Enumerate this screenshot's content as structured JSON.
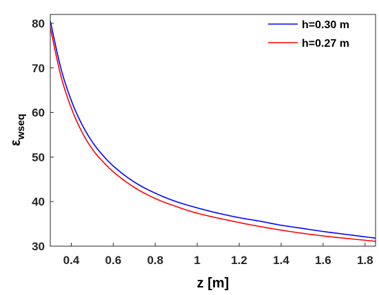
{
  "chart_data": {
    "type": "line",
    "xlabel": "z [m]",
    "ylabel_main": "ε",
    "ylabel_sub": "wseq",
    "xlim": [
      0.3,
      1.85
    ],
    "ylim": [
      30,
      82
    ],
    "xticks": [
      0.4,
      0.6,
      0.8,
      1.0,
      1.2,
      1.4,
      1.6,
      1.8
    ],
    "xtick_labels": [
      "0.4",
      "0.6",
      "0.8",
      "1",
      "1.2",
      "1.4",
      "1.6",
      "1.8"
    ],
    "yticks": [
      30,
      40,
      50,
      60,
      70,
      80
    ],
    "ytick_labels": [
      "30",
      "40",
      "50",
      "60",
      "70",
      "80"
    ],
    "grid": false,
    "legend_position": "top-right",
    "series": [
      {
        "name": "h=0.30 m",
        "color": "#0000ff",
        "x": [
          0.3,
          0.35,
          0.4,
          0.45,
          0.5,
          0.55,
          0.6,
          0.7,
          0.8,
          0.9,
          1.0,
          1.1,
          1.2,
          1.3,
          1.4,
          1.5,
          1.6,
          1.7,
          1.85
        ],
        "y": [
          80.5,
          70.0,
          62.7,
          57.4,
          53.4,
          50.4,
          48.0,
          44.4,
          41.9,
          40.0,
          38.6,
          37.4,
          36.4,
          35.6,
          34.7,
          34.0,
          33.3,
          32.7,
          31.8
        ]
      },
      {
        "name": "h=0.27 m",
        "color": "#ff0000",
        "x": [
          0.3,
          0.35,
          0.4,
          0.45,
          0.5,
          0.55,
          0.6,
          0.7,
          0.8,
          0.9,
          1.0,
          1.1,
          1.2,
          1.3,
          1.4,
          1.5,
          1.6,
          1.7,
          1.85
        ],
        "y": [
          79.0,
          68.3,
          61.0,
          55.7,
          51.8,
          49.0,
          46.7,
          43.2,
          40.7,
          38.9,
          37.4,
          36.3,
          35.3,
          34.4,
          33.6,
          32.9,
          32.3,
          31.8,
          31.1
        ]
      }
    ]
  }
}
